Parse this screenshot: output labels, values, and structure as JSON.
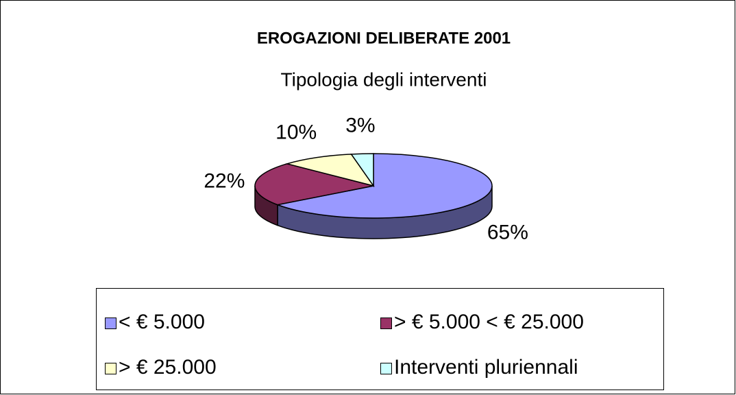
{
  "chart_data": {
    "type": "pie",
    "title": "EROGAZIONI DELIBERATE 2001",
    "subtitle": "Tipologia degli interventi",
    "categories": [
      "< € 5.000",
      "> € 5.000 < € 25.000",
      "> € 25.000",
      "Interventi pluriennali"
    ],
    "values": [
      65,
      22,
      10,
      3
    ],
    "value_labels": [
      "65%",
      "22%",
      "10%",
      "3%"
    ],
    "colors": [
      "#9999ff",
      "#993366",
      "#ffffcc",
      "#ccffff"
    ],
    "legend": "bottom"
  }
}
